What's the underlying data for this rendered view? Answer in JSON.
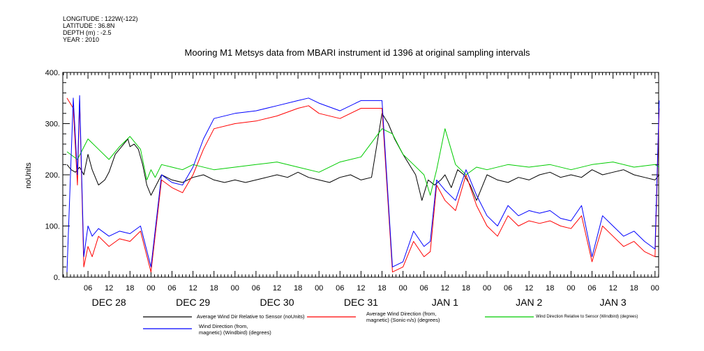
{
  "meta": {
    "longitude": "LONGITUDE : 122W(-122)",
    "latitude": "LATITUDE : 36.8N",
    "depth": "DEPTH (m) : -2.5",
    "year": "YEAR : 2010"
  },
  "chart_data": {
    "type": "line",
    "title": "Mooring M1 Metsys data from MBARI instrument id 1396 at original sampling intervals",
    "ylabel": "noUnits",
    "ylim": [
      0,
      400
    ],
    "yticks": [
      "0.",
      "100.",
      "200.",
      "300.",
      "400."
    ],
    "hour_ticks": [
      "06",
      "12",
      "18",
      "00",
      "06",
      "12",
      "18",
      "00",
      "06",
      "12",
      "18",
      "00",
      "06",
      "12",
      "18",
      "00",
      "06",
      "12",
      "18",
      "00",
      "06",
      "12",
      "18",
      "00",
      "06",
      "12",
      "18",
      "00"
    ],
    "day_labels": [
      "DEC 28",
      "DEC 29",
      "DEC 30",
      "DEC 31",
      "JAN  1",
      "JAN  2",
      "JAN  3"
    ],
    "grid": false,
    "legend_position": "bottom",
    "series": [
      {
        "name": "Average Wind Dir Relative to Sensor (noUnits)",
        "color": "#000000",
        "x": [
          0.0,
          0.2,
          0.4,
          0.6,
          0.8,
          1.0,
          1.2,
          1.5,
          1.8,
          2.0,
          2.3,
          2.6,
          2.9,
          3.0,
          3.2,
          3.4,
          3.6,
          3.8,
          4.0,
          4.5,
          5.0,
          5.5,
          6.0,
          6.5,
          7.0,
          7.5,
          8.0,
          8.5,
          9.0,
          9.5,
          10.0,
          10.5,
          11.0,
          11.5,
          12.0,
          12.5,
          13.0,
          13.5,
          14.0,
          14.5,
          15.0,
          15.3,
          15.6,
          16.0,
          16.3,
          16.6,
          16.9,
          17.2,
          17.5,
          17.8,
          18.0,
          18.3,
          18.6,
          18.9,
          19.2,
          19.5,
          20.0,
          20.5,
          21.0,
          21.5,
          22.0,
          22.5,
          23.0,
          23.5,
          24.0,
          24.5,
          25.0,
          25.5,
          26.0,
          26.5,
          27.0,
          27.5,
          28.0,
          28.2
        ],
        "values": [
          220,
          210,
          205,
          215,
          200,
          240,
          210,
          180,
          190,
          205,
          240,
          255,
          270,
          255,
          260,
          250,
          220,
          180,
          160,
          200,
          190,
          185,
          195,
          200,
          190,
          185,
          190,
          185,
          190,
          195,
          200,
          195,
          205,
          195,
          190,
          185,
          195,
          200,
          190,
          195,
          320,
          300,
          270,
          240,
          220,
          200,
          150,
          190,
          180,
          190,
          200,
          175,
          210,
          200,
          180,
          150,
          200,
          190,
          185,
          195,
          190,
          200,
          205,
          195,
          200,
          195,
          210,
          200,
          205,
          210,
          200,
          195,
          190,
          200
        ]
      },
      {
        "name": "Average Wind Direction (from, magnetic) (Sonic-n/s) (degrees)",
        "color": "#ff0000",
        "x": [
          0.0,
          0.3,
          0.5,
          0.6,
          0.8,
          1.0,
          1.2,
          1.5,
          2.0,
          2.5,
          3.0,
          3.5,
          4.0,
          4.5,
          5.0,
          5.5,
          6.0,
          6.5,
          7.0,
          8.0,
          9.0,
          10.0,
          11.0,
          11.5,
          12.0,
          13.0,
          14.0,
          15.0,
          15.5,
          16.0,
          16.5,
          17.0,
          17.3,
          17.6,
          18.0,
          18.5,
          19.0,
          19.5,
          20.0,
          20.5,
          21.0,
          21.5,
          22.0,
          22.5,
          23.0,
          23.5,
          24.0,
          24.5,
          25.0,
          25.5,
          26.0,
          26.5,
          27.0,
          27.5,
          28.0,
          28.2
        ],
        "values": [
          350,
          330,
          180,
          345,
          20,
          60,
          40,
          80,
          60,
          75,
          70,
          90,
          10,
          190,
          175,
          165,
          200,
          250,
          290,
          300,
          305,
          315,
          330,
          335,
          320,
          310,
          330,
          330,
          10,
          20,
          70,
          40,
          50,
          180,
          150,
          130,
          200,
          140,
          100,
          80,
          120,
          100,
          110,
          105,
          110,
          100,
          95,
          120,
          30,
          100,
          80,
          60,
          70,
          50,
          40,
          330
        ]
      },
      {
        "name": "Wind Direction Relative to Sensor (Windbird) (degrees)",
        "color": "#00cc00",
        "x": [
          0.0,
          0.5,
          1.0,
          1.5,
          2.0,
          2.5,
          3.0,
          3.5,
          3.8,
          4.0,
          4.2,
          4.5,
          5.0,
          5.5,
          6.0,
          7.0,
          8.0,
          9.0,
          10.0,
          11.0,
          12.0,
          13.0,
          14.0,
          15.0,
          15.5,
          16.0,
          16.5,
          17.0,
          17.3,
          17.6,
          18.0,
          18.5,
          19.0,
          19.5,
          20.0,
          21.0,
          22.0,
          23.0,
          24.0,
          25.0,
          26.0,
          27.0,
          28.0,
          28.2
        ],
        "values": [
          245,
          230,
          270,
          250,
          230,
          255,
          275,
          250,
          190,
          210,
          195,
          220,
          215,
          210,
          220,
          210,
          215,
          220,
          225,
          215,
          205,
          225,
          235,
          290,
          280,
          240,
          220,
          200,
          160,
          210,
          290,
          220,
          200,
          215,
          210,
          220,
          215,
          220,
          210,
          220,
          225,
          215,
          220,
          215
        ]
      },
      {
        "name": "Wind Direction (from, magnetic) (Windbird) (degrees)",
        "color": "#0000ff",
        "x": [
          0.0,
          0.3,
          0.5,
          0.6,
          0.8,
          1.0,
          1.2,
          1.5,
          2.0,
          2.5,
          3.0,
          3.5,
          4.0,
          4.5,
          5.0,
          5.5,
          6.0,
          6.5,
          7.0,
          8.0,
          9.0,
          10.0,
          11.0,
          11.5,
          12.0,
          13.0,
          14.0,
          15.0,
          15.5,
          16.0,
          16.5,
          17.0,
          17.3,
          17.6,
          18.0,
          18.5,
          19.0,
          19.5,
          20.0,
          20.5,
          21.0,
          21.5,
          22.0,
          22.5,
          23.0,
          23.5,
          24.0,
          24.5,
          25.0,
          25.5,
          26.0,
          26.5,
          27.0,
          27.5,
          28.0,
          28.2
        ],
        "values": [
          10,
          350,
          200,
          355,
          40,
          100,
          80,
          95,
          80,
          90,
          85,
          100,
          20,
          200,
          185,
          180,
          215,
          270,
          310,
          320,
          325,
          335,
          345,
          350,
          340,
          325,
          345,
          345,
          20,
          30,
          90,
          60,
          70,
          190,
          170,
          150,
          210,
          160,
          120,
          100,
          140,
          120,
          130,
          125,
          130,
          115,
          110,
          140,
          40,
          120,
          100,
          80,
          90,
          70,
          55,
          345
        ]
      }
    ]
  },
  "legend": {
    "black": "Average Wind Dir Relative to Sensor (noUnits)",
    "red_line1": "Average Wind Direction (from,",
    "red_line2": "magnetic) (Sonic-n/s) (degrees)",
    "green": "Wind Direction Relative to Sensor (Windbird) (degrees)",
    "blue_line1": "Wind Direction (from,",
    "blue_line2": "magnetic) (Windbird) (degrees)"
  }
}
